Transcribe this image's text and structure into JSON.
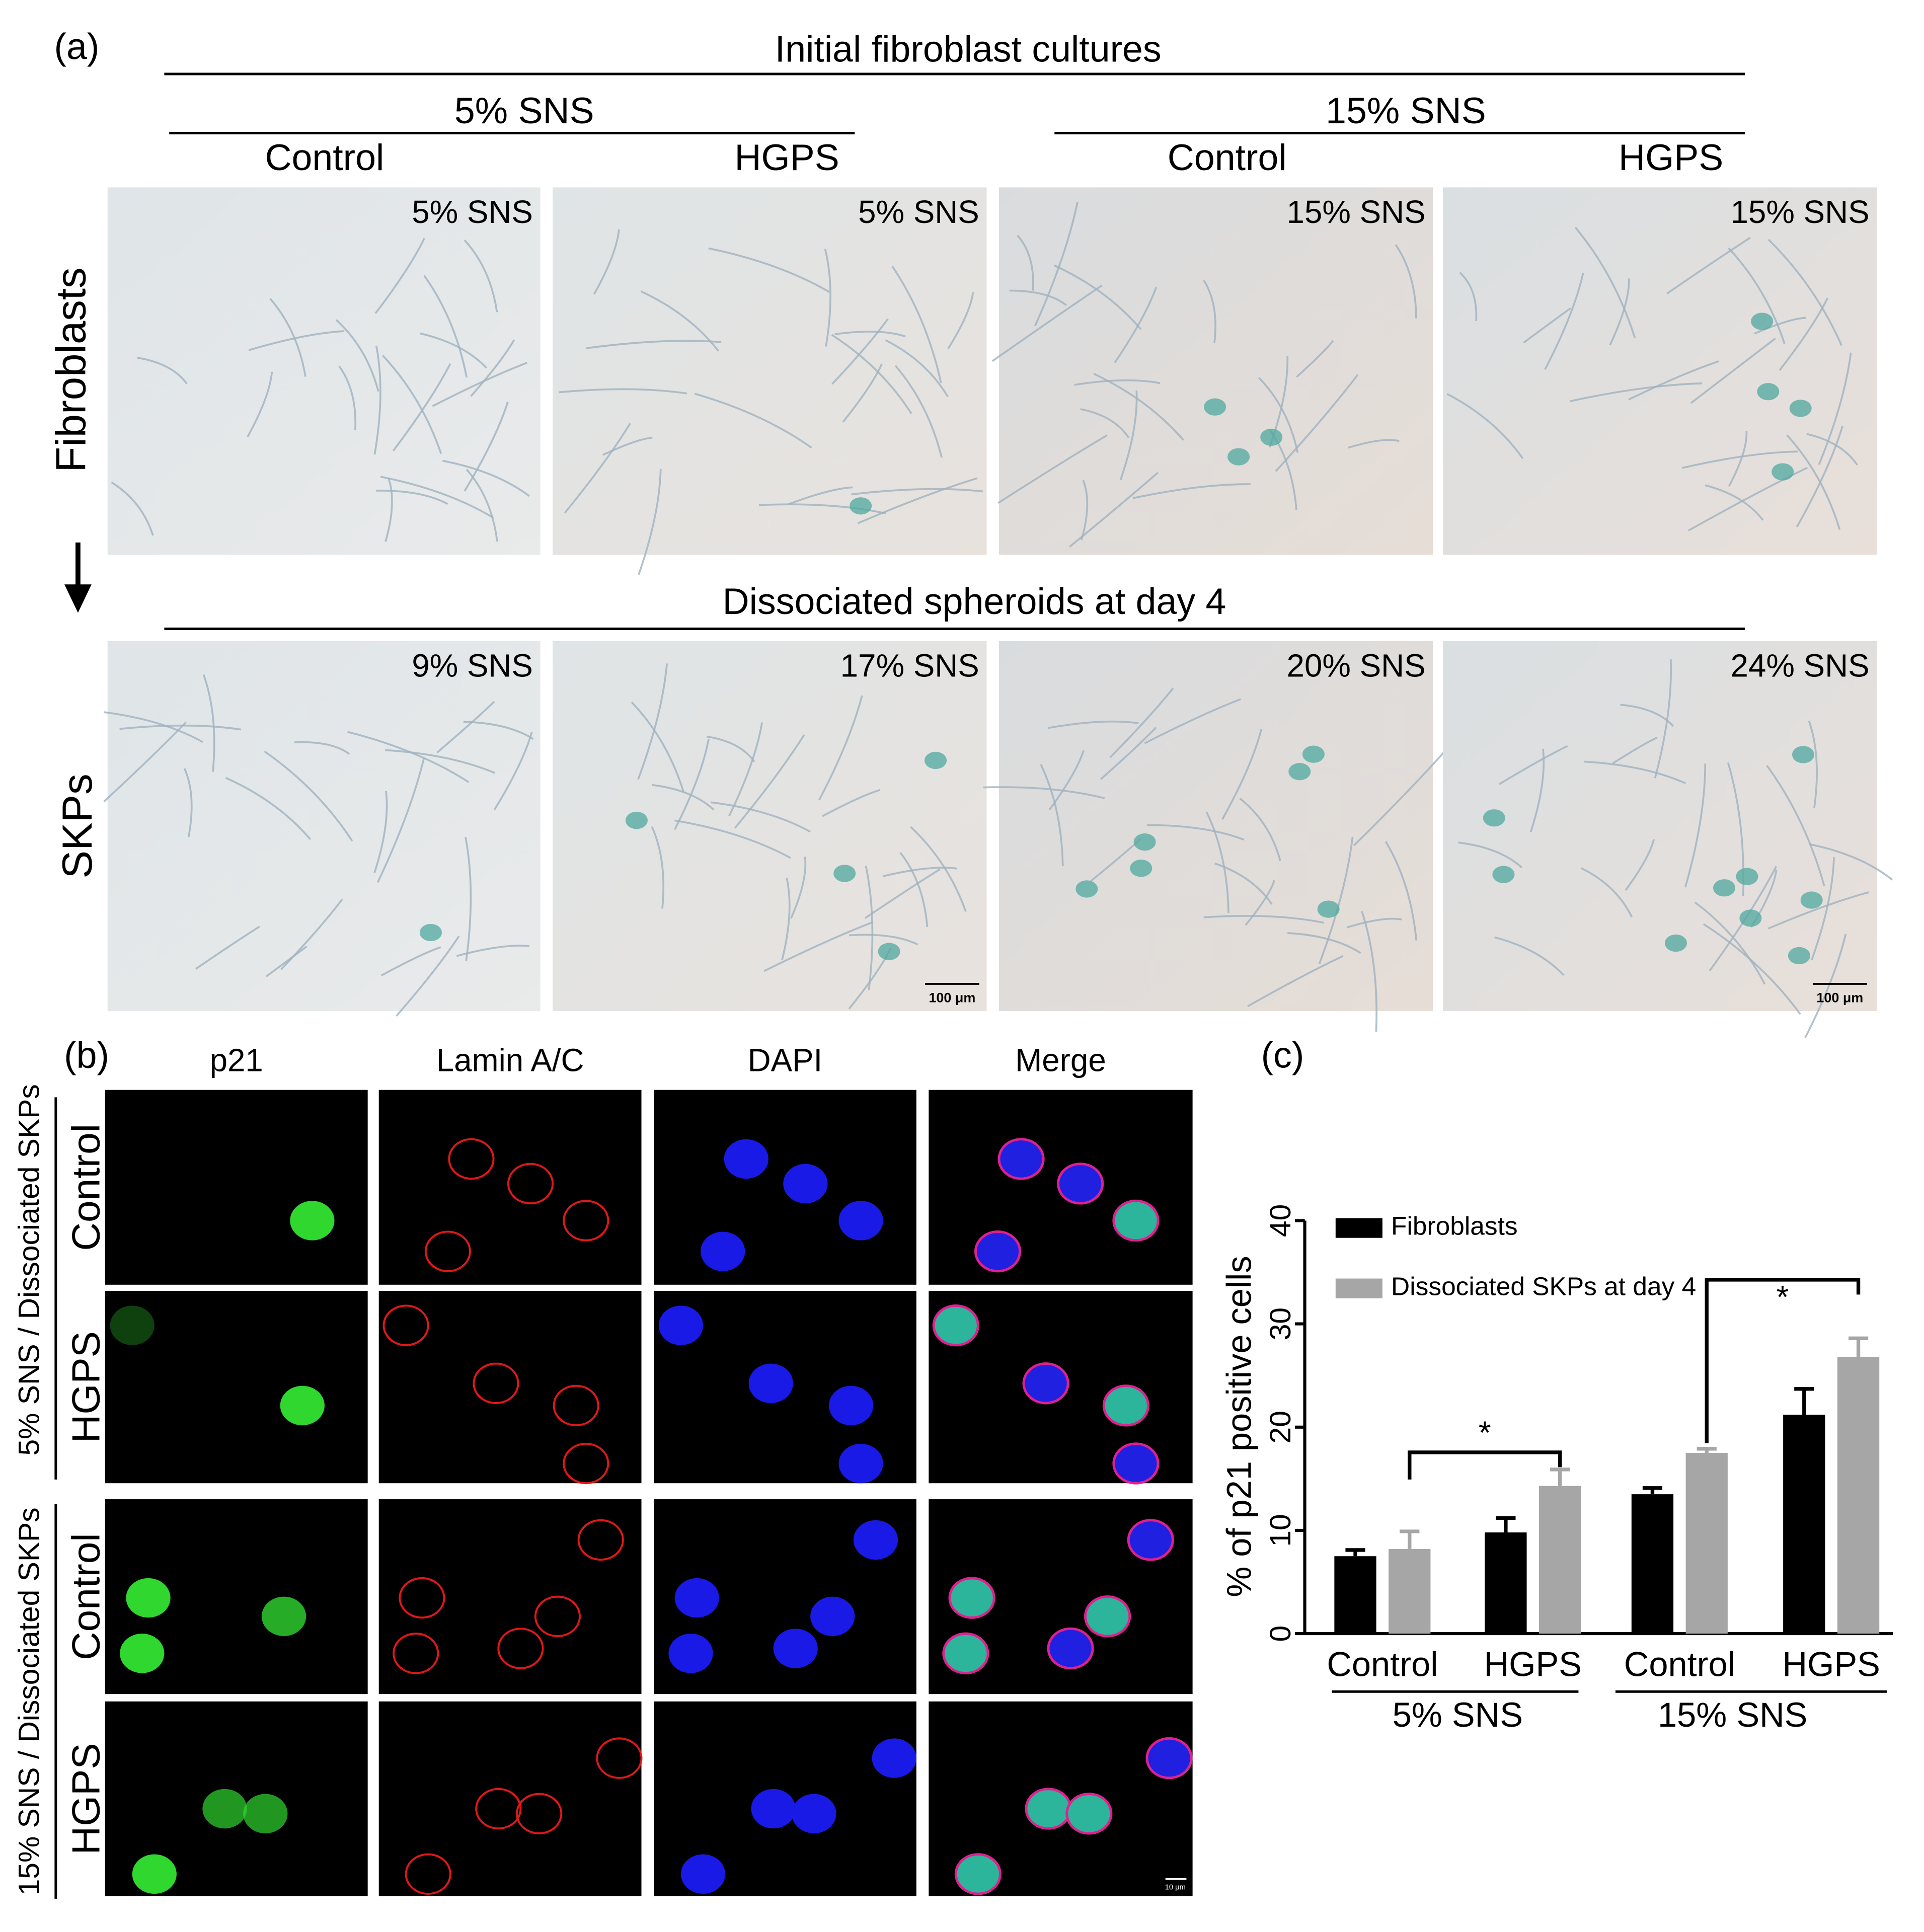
{
  "panel_a": {
    "label": "(a)",
    "title": "Initial fibroblast cultures",
    "groups": [
      "5% SNS",
      "15% SNS"
    ],
    "columns": [
      "Control",
      "HGPS",
      "Control",
      "HGPS"
    ],
    "rows": [
      "Fibroblasts",
      "SKPs"
    ],
    "subtitle": "Dissociated spheroids at day 4",
    "image_labels": [
      [
        "5% SNS",
        "5% SNS",
        "15% SNS",
        "15% SNS"
      ],
      [
        "9% SNS",
        "17% SNS",
        "20% SNS",
        "24% SNS"
      ]
    ],
    "scale_bars": [
      "100 μm",
      "100 μm"
    ]
  },
  "panel_b": {
    "label": "(b)",
    "columns": [
      "p21",
      "Lamin A/C",
      "DAPI",
      "Merge"
    ],
    "groups": [
      "5% SNS / Dissociated SKPs",
      "15% SNS / Dissociated SKPs"
    ],
    "rows": [
      "Control",
      "HGPS",
      "Control",
      "HGPS"
    ],
    "scale_bar": "10 μm"
  },
  "chart_data": {
    "type": "bar",
    "panel_label": "(c)",
    "y_label": "% of p21 positive cells",
    "categories": [
      "Control",
      "HGPS",
      "Control",
      "HGPS"
    ],
    "groups": [
      "5% SNS",
      "15% SNS"
    ],
    "series": [
      {
        "name": "Fibroblasts",
        "color": "#000000",
        "values": [
          7.5,
          9.8,
          13.5,
          21.2
        ],
        "errors": [
          0.6,
          1.4,
          0.6,
          2.5
        ]
      },
      {
        "name": "Dissociated SKPs at day 4",
        "color": "#a6a6a6",
        "values": [
          8.2,
          14.3,
          17.5,
          26.8
        ],
        "errors": [
          1.7,
          1.6,
          0.4,
          1.8
        ]
      }
    ],
    "ylim": [
      0,
      40
    ],
    "yticks": [
      0,
      10,
      20,
      30,
      40
    ],
    "annotations": [
      "*",
      "*"
    ]
  }
}
